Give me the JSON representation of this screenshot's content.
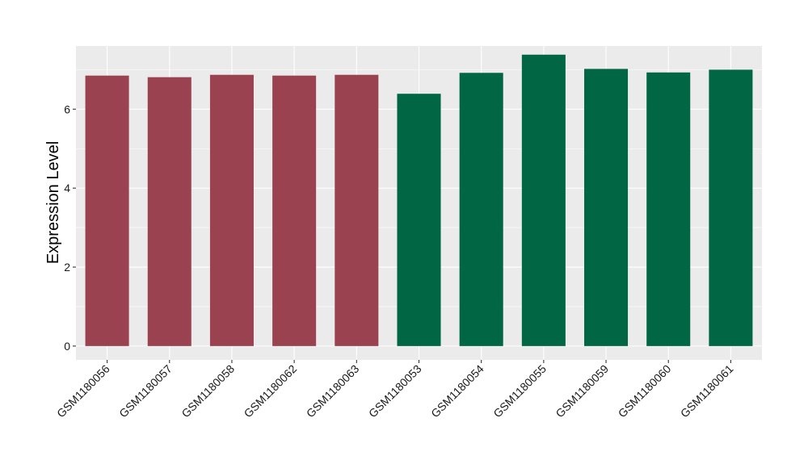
{
  "chart_data": {
    "type": "bar",
    "title": "",
    "xlabel": "",
    "ylabel": "Expression Level",
    "ylim": [
      -0.35,
      7.6
    ],
    "yticks": [
      0,
      2,
      4,
      6
    ],
    "grid": true,
    "legend": "none",
    "categories": [
      "GSM1180056",
      "GSM1180057",
      "GSM1180058",
      "GSM1180062",
      "GSM1180063",
      "GSM1180053",
      "GSM1180054",
      "GSM1180055",
      "GSM1180059",
      "GSM1180060",
      "GSM1180061"
    ],
    "values": [
      6.85,
      6.81,
      6.87,
      6.85,
      6.87,
      6.39,
      6.92,
      7.38,
      7.02,
      6.93,
      7.0
    ],
    "bar_colors": [
      "#9a4250",
      "#9a4250",
      "#9a4250",
      "#9a4250",
      "#9a4250",
      "#006644",
      "#006644",
      "#006644",
      "#006644",
      "#006644",
      "#006644"
    ]
  }
}
